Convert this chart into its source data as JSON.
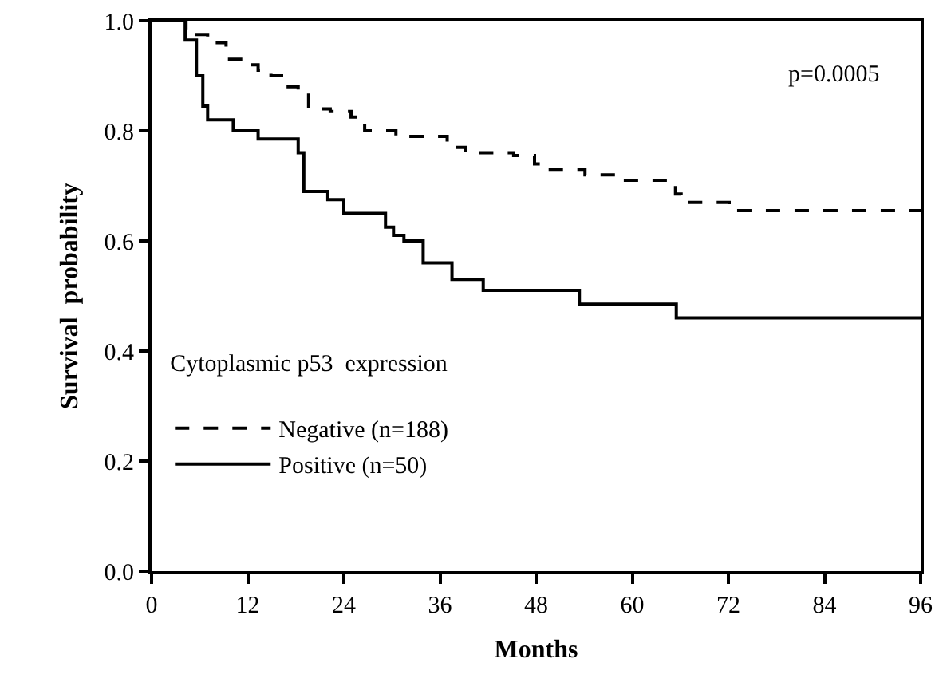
{
  "chart_data": {
    "type": "step",
    "xlabel": "Months",
    "ylabel": "Survival  probability",
    "legend_title": "Cytoplasmic p53  expression",
    "legend": "bottom left",
    "marker": "none",
    "grid": false,
    "xlim": [
      0,
      96
    ],
    "xticks": [
      0,
      12,
      24,
      36,
      48,
      60,
      72,
      84,
      96
    ],
    "ylim": [
      0,
      1
    ],
    "yticks": [
      {
        "value": 0,
        "label": "0.0"
      },
      0.2,
      0.4,
      0.6,
      0.8,
      {
        "value": 1,
        "label": "1.0"
      }
    ],
    "annotations": [
      "p=0.0005"
    ],
    "series": [
      {
        "name": "Negative (n=188)",
        "color": "#000000",
        "line_style": "dashed",
        "x": [
          0,
          3,
          4.3,
          7,
          9.3,
          11.6,
          13.3,
          14.9,
          16.6,
          18.3,
          19.6,
          22.3,
          24.9,
          26.6,
          30.5,
          36.9,
          39.2,
          45.2,
          47.8,
          49.1,
          54.1,
          58.8,
          65.4,
          66.1,
          66.7,
          72.1,
          96
        ],
        "values": [
          1,
          1,
          0.975,
          0.96,
          0.93,
          0.92,
          0.91,
          0.9,
          0.88,
          0.87,
          0.84,
          0.835,
          0.825,
          0.8,
          0.79,
          0.77,
          0.76,
          0.755,
          0.74,
          0.73,
          0.72,
          0.71,
          0.685,
          0.675,
          0.67,
          0.655,
          0.655
        ]
      },
      {
        "name": "Positive (n=50)",
        "color": "#000000",
        "line_style": "solid",
        "x": [
          0,
          4,
          4.2,
          5.6,
          6.4,
          7,
          10.2,
          13.3,
          18.3,
          19,
          22,
          24,
          29.2,
          30.2,
          31.5,
          33.9,
          37.5,
          41.4,
          53.4,
          65.5,
          96
        ],
        "values": [
          1,
          1,
          0.965,
          0.9,
          0.845,
          0.82,
          0.8,
          0.785,
          0.76,
          0.69,
          0.675,
          0.65,
          0.625,
          0.61,
          0.6,
          0.56,
          0.53,
          0.51,
          0.485,
          0.46,
          0.46
        ]
      }
    ]
  }
}
